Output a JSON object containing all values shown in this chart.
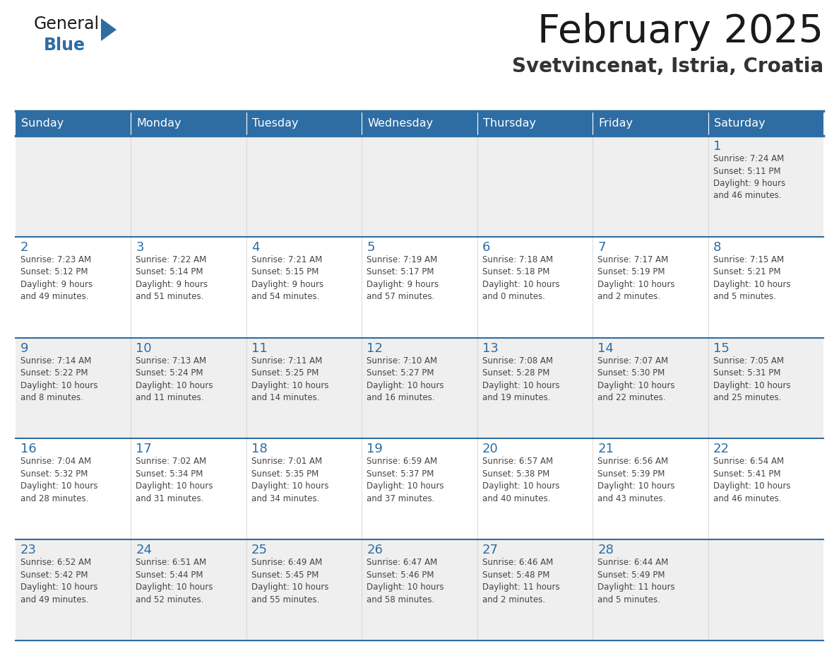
{
  "title": "February 2025",
  "subtitle": "Svetvincenat, Istria, Croatia",
  "header_bg": "#2E6DA4",
  "header_text_color": "#FFFFFF",
  "cell_bg_odd": "#EFEFEF",
  "cell_bg_even": "#FFFFFF",
  "day_number_color": "#2E6DA4",
  "text_color": "#444444",
  "line_color": "#2E6DA4",
  "days_of_week": [
    "Sunday",
    "Monday",
    "Tuesday",
    "Wednesday",
    "Thursday",
    "Friday",
    "Saturday"
  ],
  "weeks": [
    [
      {
        "day": null,
        "info": null
      },
      {
        "day": null,
        "info": null
      },
      {
        "day": null,
        "info": null
      },
      {
        "day": null,
        "info": null
      },
      {
        "day": null,
        "info": null
      },
      {
        "day": null,
        "info": null
      },
      {
        "day": 1,
        "info": "Sunrise: 7:24 AM\nSunset: 5:11 PM\nDaylight: 9 hours\nand 46 minutes."
      }
    ],
    [
      {
        "day": 2,
        "info": "Sunrise: 7:23 AM\nSunset: 5:12 PM\nDaylight: 9 hours\nand 49 minutes."
      },
      {
        "day": 3,
        "info": "Sunrise: 7:22 AM\nSunset: 5:14 PM\nDaylight: 9 hours\nand 51 minutes."
      },
      {
        "day": 4,
        "info": "Sunrise: 7:21 AM\nSunset: 5:15 PM\nDaylight: 9 hours\nand 54 minutes."
      },
      {
        "day": 5,
        "info": "Sunrise: 7:19 AM\nSunset: 5:17 PM\nDaylight: 9 hours\nand 57 minutes."
      },
      {
        "day": 6,
        "info": "Sunrise: 7:18 AM\nSunset: 5:18 PM\nDaylight: 10 hours\nand 0 minutes."
      },
      {
        "day": 7,
        "info": "Sunrise: 7:17 AM\nSunset: 5:19 PM\nDaylight: 10 hours\nand 2 minutes."
      },
      {
        "day": 8,
        "info": "Sunrise: 7:15 AM\nSunset: 5:21 PM\nDaylight: 10 hours\nand 5 minutes."
      }
    ],
    [
      {
        "day": 9,
        "info": "Sunrise: 7:14 AM\nSunset: 5:22 PM\nDaylight: 10 hours\nand 8 minutes."
      },
      {
        "day": 10,
        "info": "Sunrise: 7:13 AM\nSunset: 5:24 PM\nDaylight: 10 hours\nand 11 minutes."
      },
      {
        "day": 11,
        "info": "Sunrise: 7:11 AM\nSunset: 5:25 PM\nDaylight: 10 hours\nand 14 minutes."
      },
      {
        "day": 12,
        "info": "Sunrise: 7:10 AM\nSunset: 5:27 PM\nDaylight: 10 hours\nand 16 minutes."
      },
      {
        "day": 13,
        "info": "Sunrise: 7:08 AM\nSunset: 5:28 PM\nDaylight: 10 hours\nand 19 minutes."
      },
      {
        "day": 14,
        "info": "Sunrise: 7:07 AM\nSunset: 5:30 PM\nDaylight: 10 hours\nand 22 minutes."
      },
      {
        "day": 15,
        "info": "Sunrise: 7:05 AM\nSunset: 5:31 PM\nDaylight: 10 hours\nand 25 minutes."
      }
    ],
    [
      {
        "day": 16,
        "info": "Sunrise: 7:04 AM\nSunset: 5:32 PM\nDaylight: 10 hours\nand 28 minutes."
      },
      {
        "day": 17,
        "info": "Sunrise: 7:02 AM\nSunset: 5:34 PM\nDaylight: 10 hours\nand 31 minutes."
      },
      {
        "day": 18,
        "info": "Sunrise: 7:01 AM\nSunset: 5:35 PM\nDaylight: 10 hours\nand 34 minutes."
      },
      {
        "day": 19,
        "info": "Sunrise: 6:59 AM\nSunset: 5:37 PM\nDaylight: 10 hours\nand 37 minutes."
      },
      {
        "day": 20,
        "info": "Sunrise: 6:57 AM\nSunset: 5:38 PM\nDaylight: 10 hours\nand 40 minutes."
      },
      {
        "day": 21,
        "info": "Sunrise: 6:56 AM\nSunset: 5:39 PM\nDaylight: 10 hours\nand 43 minutes."
      },
      {
        "day": 22,
        "info": "Sunrise: 6:54 AM\nSunset: 5:41 PM\nDaylight: 10 hours\nand 46 minutes."
      }
    ],
    [
      {
        "day": 23,
        "info": "Sunrise: 6:52 AM\nSunset: 5:42 PM\nDaylight: 10 hours\nand 49 minutes."
      },
      {
        "day": 24,
        "info": "Sunrise: 6:51 AM\nSunset: 5:44 PM\nDaylight: 10 hours\nand 52 minutes."
      },
      {
        "day": 25,
        "info": "Sunrise: 6:49 AM\nSunset: 5:45 PM\nDaylight: 10 hours\nand 55 minutes."
      },
      {
        "day": 26,
        "info": "Sunrise: 6:47 AM\nSunset: 5:46 PM\nDaylight: 10 hours\nand 58 minutes."
      },
      {
        "day": 27,
        "info": "Sunrise: 6:46 AM\nSunset: 5:48 PM\nDaylight: 11 hours\nand 2 minutes."
      },
      {
        "day": 28,
        "info": "Sunrise: 6:44 AM\nSunset: 5:49 PM\nDaylight: 11 hours\nand 5 minutes."
      },
      {
        "day": null,
        "info": null
      }
    ]
  ],
  "logo_color_general": "#1a1a1a",
  "logo_color_blue": "#2E6DA4",
  "logo_triangle_color": "#2E6DA4"
}
